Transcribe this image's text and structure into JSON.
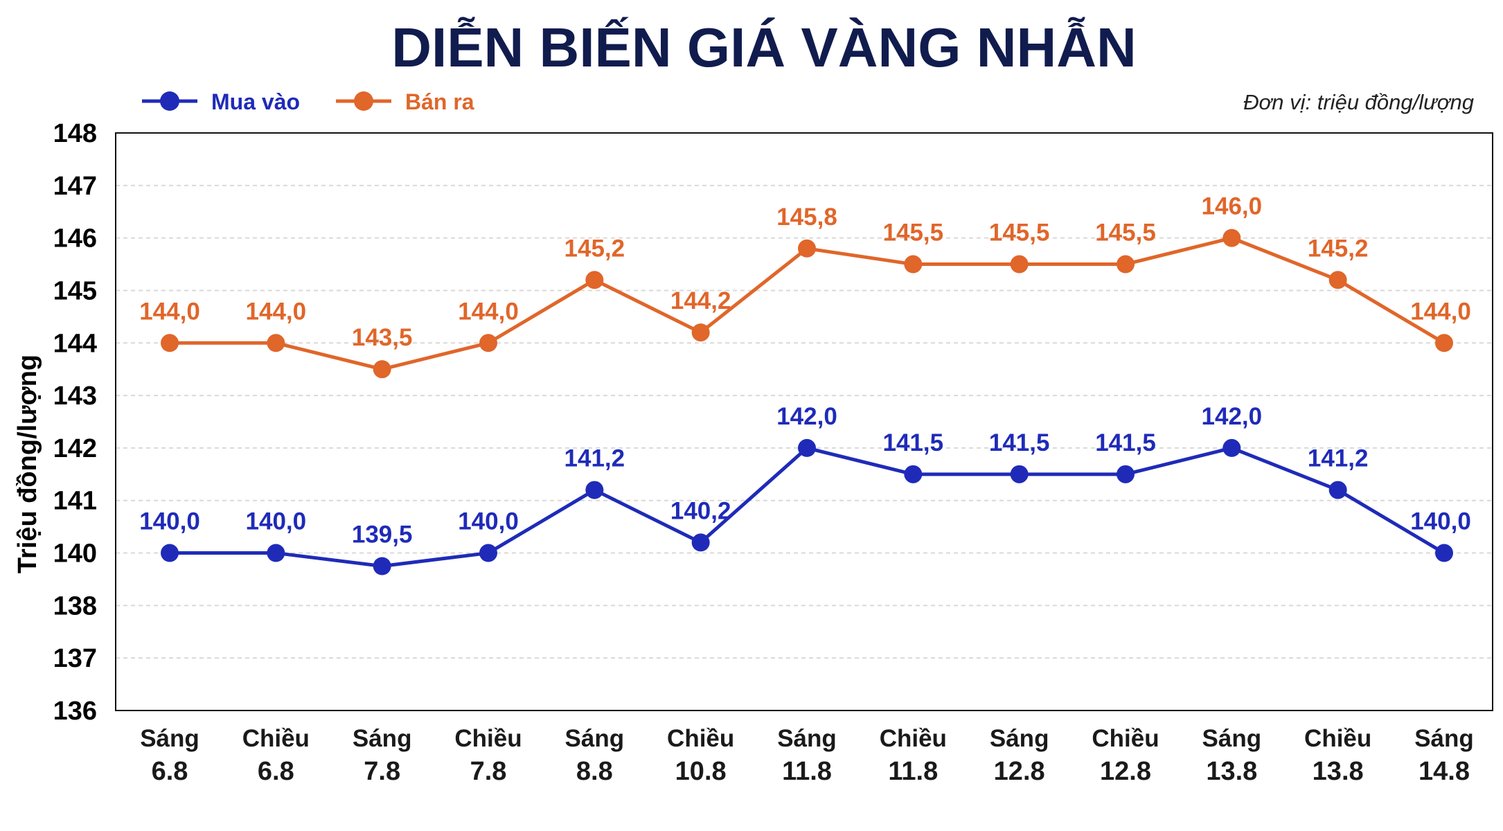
{
  "colors": {
    "buy": "#1f2bb8",
    "sell": "#e0662a",
    "title": "#111c4e",
    "grid": "#d9d9d9",
    "axis": "#111111"
  },
  "chart_data": {
    "type": "line",
    "title": "DIỄN BIẾN GIÁ VÀNG NHẪN",
    "unit_note": "Đơn vị: triệu đồng/lượng",
    "ylabel": "Triệu đồng/lượng",
    "xlabel": "",
    "y_ticks": [
      "136",
      "137",
      "138",
      "140",
      "141",
      "142",
      "143",
      "144",
      "145",
      "146",
      "147",
      "148"
    ],
    "categories": [
      [
        "Sáng",
        "6.8"
      ],
      [
        "Chiều",
        "6.8"
      ],
      [
        "Sáng",
        "7.8"
      ],
      [
        "Chiều",
        "7.8"
      ],
      [
        "Sáng",
        "8.8"
      ],
      [
        "Chiều",
        "10.8"
      ],
      [
        "Sáng",
        "11.8"
      ],
      [
        "Chiều",
        "11.8"
      ],
      [
        "Sáng",
        "12.8"
      ],
      [
        "Chiều",
        "12.8"
      ],
      [
        "Sáng",
        "13.8"
      ],
      [
        "Chiều",
        "13.8"
      ],
      [
        "Sáng",
        "14.8"
      ]
    ],
    "series": [
      {
        "name": "Mua vào",
        "color": "#1f2bb8",
        "values": [
          140.0,
          140.0,
          139.5,
          140.0,
          141.2,
          140.2,
          142.0,
          141.5,
          141.5,
          141.5,
          142.0,
          141.2,
          140.0
        ],
        "labels": [
          "140,0",
          "140,0",
          "139,5",
          "140,0",
          "141,2",
          "140,2",
          "142,0",
          "141,5",
          "141,5",
          "141,5",
          "142,0",
          "141,2",
          "140,0"
        ]
      },
      {
        "name": "Bán ra",
        "color": "#e0662a",
        "values": [
          144.0,
          144.0,
          143.5,
          144.0,
          145.2,
          144.2,
          145.8,
          145.5,
          145.5,
          145.5,
          146.0,
          145.2,
          144.0
        ],
        "labels": [
          "144,0",
          "144,0",
          "143,5",
          "144,0",
          "145,2",
          "144,2",
          "145,8",
          "145,5",
          "145,5",
          "145,5",
          "146,0",
          "145,2",
          "144,0"
        ]
      }
    ],
    "grid": true,
    "legend_position": "top-left"
  }
}
